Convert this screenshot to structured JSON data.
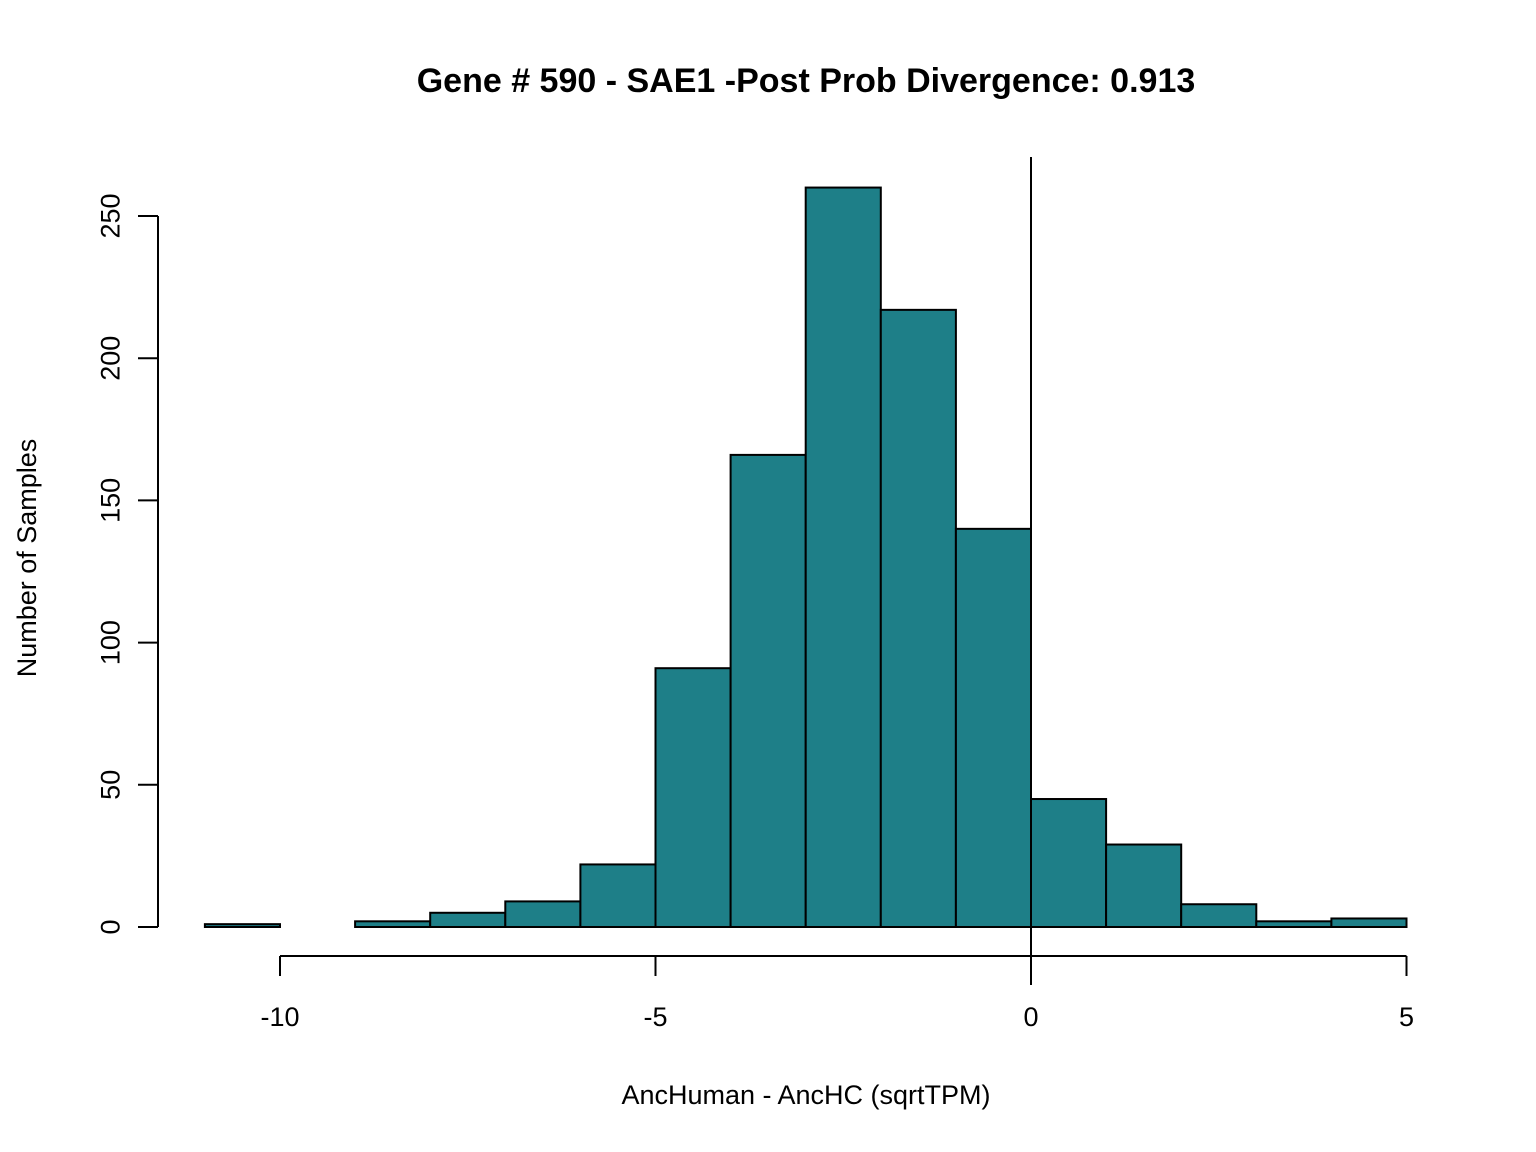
{
  "chart_data": {
    "type": "bar",
    "title": "Gene # 590 - SAE1 -Post Prob Divergence: 0.913",
    "xlabel": "AncHuman - AncHC (sqrtTPM)",
    "ylabel": "Number of Samples",
    "bar_color": "#1e7f88",
    "bin_width": 1,
    "bins": [
      {
        "start": -11,
        "end": -10,
        "count": 1
      },
      {
        "start": -10,
        "end": -9,
        "count": 0
      },
      {
        "start": -9,
        "end": -8,
        "count": 2
      },
      {
        "start": -8,
        "end": -7,
        "count": 5
      },
      {
        "start": -7,
        "end": -6,
        "count": 9
      },
      {
        "start": -6,
        "end": -5,
        "count": 22
      },
      {
        "start": -5,
        "end": -4,
        "count": 91
      },
      {
        "start": -4,
        "end": -3,
        "count": 166
      },
      {
        "start": -3,
        "end": -2,
        "count": 260
      },
      {
        "start": -2,
        "end": -1,
        "count": 217
      },
      {
        "start": -1,
        "end": 0,
        "count": 140
      },
      {
        "start": 0,
        "end": 1,
        "count": 45
      },
      {
        "start": 1,
        "end": 2,
        "count": 29
      },
      {
        "start": 2,
        "end": 3,
        "count": 8
      },
      {
        "start": 3,
        "end": 4,
        "count": 2
      },
      {
        "start": 4,
        "end": 5,
        "count": 3
      }
    ],
    "x_ticks": [
      {
        "value": -10,
        "label": "-10"
      },
      {
        "value": -5,
        "label": "-5"
      },
      {
        "value": 0,
        "label": "0"
      },
      {
        "value": 5,
        "label": "5"
      }
    ],
    "y_ticks": [
      {
        "value": 0,
        "label": "0"
      },
      {
        "value": 50,
        "label": "50"
      },
      {
        "value": 100,
        "label": "100"
      },
      {
        "value": 150,
        "label": "150"
      },
      {
        "value": 200,
        "label": "200"
      },
      {
        "value": 250,
        "label": "250"
      }
    ],
    "xlim": [
      -11.5,
      5
    ],
    "ylim": [
      0,
      270
    ],
    "reference_line_x": 0,
    "grid": false
  }
}
